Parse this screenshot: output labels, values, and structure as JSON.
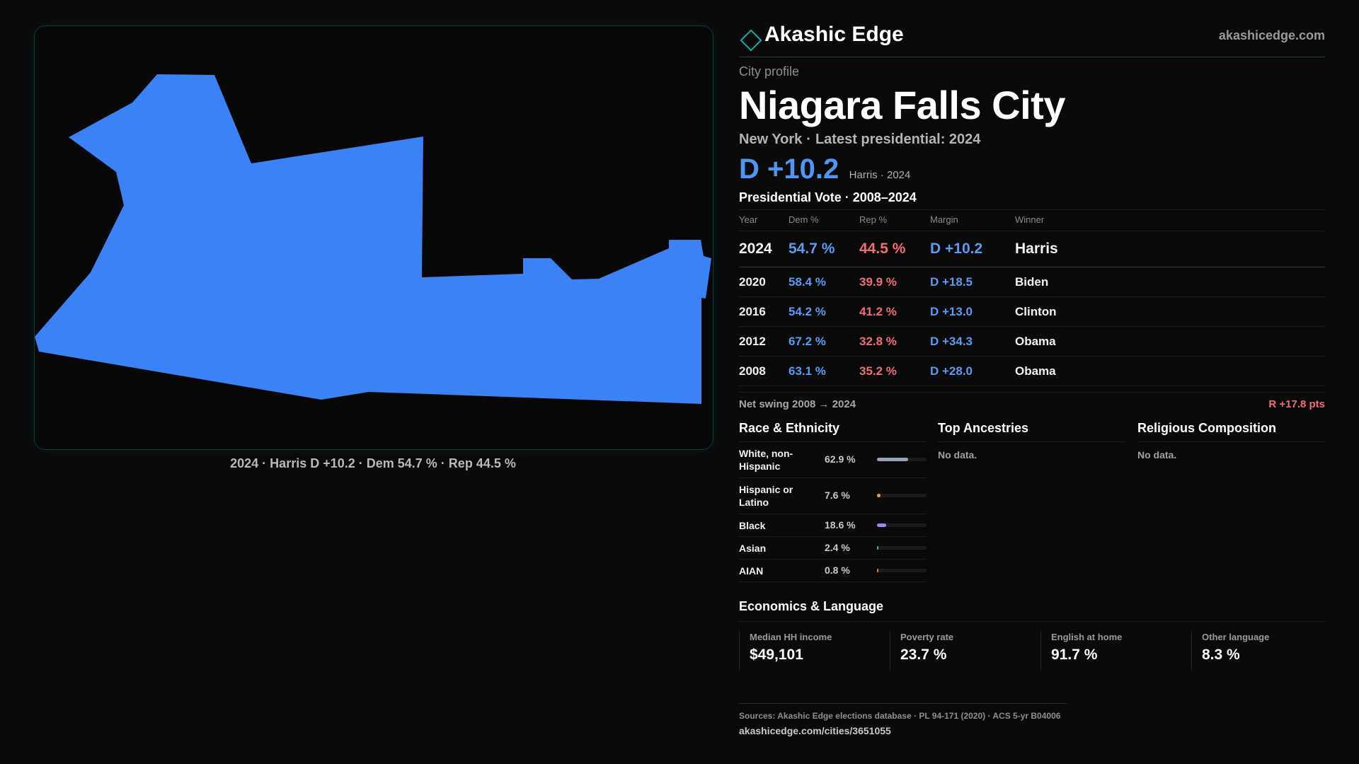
{
  "brand": {
    "name": "Akashic Edge",
    "url": "akashicedge.com",
    "icon": "diamond-icon",
    "accent": "#1aa8a8"
  },
  "map": {
    "caption": "2024 · Harris D +10.2 · Dem 54.7 % · Rep 44.5 %",
    "fill": "#3b82f6"
  },
  "profile": {
    "eyebrow": "City profile",
    "title": "Niagara Falls City",
    "state": "New York",
    "latest": "Latest presidential: 2024",
    "headline_margin": "D +10.2",
    "headline_note": "Harris · 2024"
  },
  "votes": {
    "heading": "Presidential Vote · 2008–2024",
    "columns": [
      "Year",
      "Dem %",
      "Rep %",
      "Margin",
      "Winner"
    ],
    "rows": [
      {
        "year": "2024",
        "dem": "54.7 %",
        "rep": "44.5 %",
        "margin": "D +10.2",
        "winner": "Harris"
      },
      {
        "year": "2020",
        "dem": "58.4 %",
        "rep": "39.9 %",
        "margin": "D +18.5",
        "winner": "Biden"
      },
      {
        "year": "2016",
        "dem": "54.2 %",
        "rep": "41.2 %",
        "margin": "D +13.0",
        "winner": "Clinton"
      },
      {
        "year": "2012",
        "dem": "67.2 %",
        "rep": "32.8 %",
        "margin": "D +34.3",
        "winner": "Obama"
      },
      {
        "year": "2008",
        "dem": "63.1 %",
        "rep": "35.2 %",
        "margin": "D +28.0",
        "winner": "Obama"
      }
    ],
    "swing_label": "Net swing 2008 → 2024",
    "swing_value": "R +17.8 pts"
  },
  "race": {
    "heading": "Race & Ethnicity",
    "items": [
      {
        "name": "White, non-Hispanic",
        "value": "62.9 %",
        "share": 0.629,
        "color": "#9aa3b5"
      },
      {
        "name": "Hispanic or Latino",
        "value": "7.6 %",
        "share": 0.076,
        "color": "#f0a020"
      },
      {
        "name": "Black",
        "value": "18.6 %",
        "share": 0.186,
        "color": "#a785f0"
      },
      {
        "name": "Asian",
        "value": "2.4 %",
        "share": 0.024,
        "color": "#22c08f"
      },
      {
        "name": "AIAN",
        "value": "0.8 %",
        "share": 0.008,
        "color": "#e0803a"
      }
    ]
  },
  "ancestries": {
    "heading": "Top Ancestries",
    "empty": "No data."
  },
  "religion": {
    "heading": "Religious Composition",
    "empty": "No data."
  },
  "economics": {
    "heading": "Economics & Language",
    "items": [
      {
        "label": "Median HH income",
        "value": "$49,101"
      },
      {
        "label": "Poverty rate",
        "value": "23.7 %"
      },
      {
        "label": "English at home",
        "value": "91.7 %"
      },
      {
        "label": "Other language",
        "value": "8.3 %"
      }
    ]
  },
  "footer": {
    "sources": "Sources: Akashic Edge elections database · PL 94-171 (2020) · ACS 5-yr B04006",
    "url": "akashicedge.com/cities/3651055"
  },
  "colors": {
    "dem": "#5a9cf2",
    "rep": "#ef6f73",
    "background": "#0a0a0b"
  }
}
